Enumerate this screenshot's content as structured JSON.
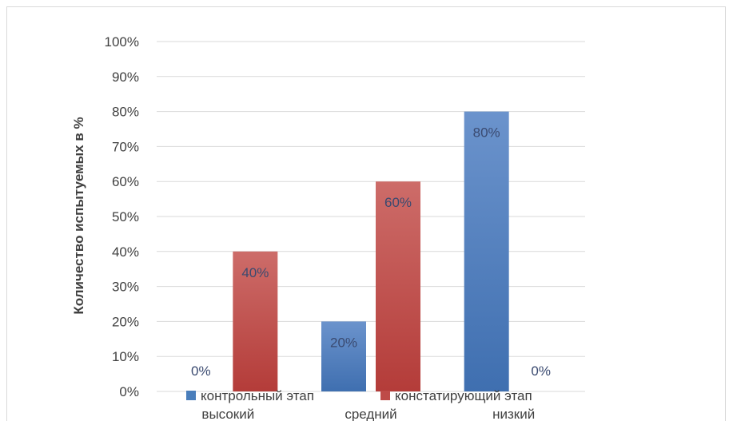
{
  "chart_data": {
    "type": "bar",
    "categories": [
      "высокий",
      "средний",
      "низкий"
    ],
    "series": [
      {
        "name": "контрольный этап",
        "values": [
          0,
          20,
          80
        ],
        "color": "#4a7ebb"
      },
      {
        "name": "констатирующий этап",
        "values": [
          40,
          60,
          0
        ],
        "color": "#be4b48"
      }
    ],
    "data_labels": [
      [
        "0%",
        "20%",
        "80%"
      ],
      [
        "40%",
        "60%",
        "0%"
      ]
    ],
    "ylabel": "Количество испытуемых в %",
    "ylim": [
      0,
      100
    ],
    "yticks": [
      "0%",
      "10%",
      "20%",
      "30%",
      "40%",
      "50%",
      "60%",
      "70%",
      "80%",
      "90%",
      "100%"
    ],
    "grid": true,
    "legend": "bottom"
  }
}
